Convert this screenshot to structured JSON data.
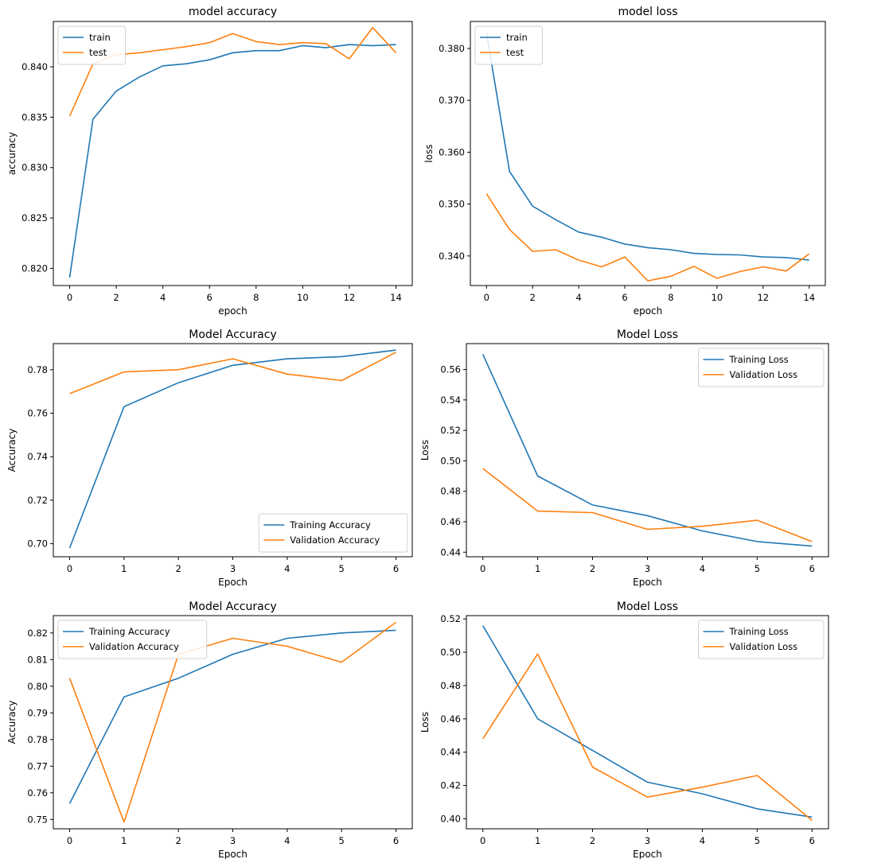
{
  "chart_data": [
    {
      "type": "line",
      "title": "model accuracy",
      "xlabel": "epoch",
      "ylabel": "accuracy",
      "xlim": [
        -0.7,
        14.7
      ],
      "ylim": [
        0.8183,
        0.8445
      ],
      "xticks": [
        0,
        2,
        4,
        6,
        8,
        10,
        12,
        14
      ],
      "yticks": [
        0.82,
        0.825,
        0.83,
        0.835,
        0.84
      ],
      "ytick_labels": [
        "0.820",
        "0.825",
        "0.830",
        "0.835",
        "0.840"
      ],
      "legend_loc": "upper-left",
      "x": [
        0,
        1,
        2,
        3,
        4,
        5,
        6,
        7,
        8,
        9,
        10,
        11,
        12,
        13,
        14
      ],
      "series": [
        {
          "name": "train",
          "color": "#1f77b4",
          "values": [
            0.8191,
            0.8348,
            0.8376,
            0.839,
            0.8401,
            0.8403,
            0.8407,
            0.8414,
            0.8416,
            0.8416,
            0.8421,
            0.8419,
            0.8422,
            0.8421,
            0.8422
          ]
        },
        {
          "name": "test",
          "color": "#ff7f0e",
          "values": [
            0.8351,
            0.8403,
            0.8412,
            0.8414,
            0.8417,
            0.842,
            0.8424,
            0.8433,
            0.8425,
            0.8422,
            0.8424,
            0.8423,
            0.8408,
            0.8439,
            0.8414
          ]
        }
      ]
    },
    {
      "type": "line",
      "title": "model loss",
      "xlabel": "epoch",
      "ylabel": "loss",
      "xlim": [
        -0.7,
        14.7
      ],
      "ylim": [
        0.3343,
        0.3852
      ],
      "xticks": [
        0,
        2,
        4,
        6,
        8,
        10,
        12,
        14
      ],
      "yticks": [
        0.34,
        0.35,
        0.36,
        0.37,
        0.38
      ],
      "ytick_labels": [
        "0.340",
        "0.350",
        "0.360",
        "0.370",
        "0.380"
      ],
      "legend_loc": "upper-left",
      "x": [
        0,
        1,
        2,
        3,
        4,
        5,
        6,
        7,
        8,
        9,
        10,
        11,
        12,
        13,
        14
      ],
      "series": [
        {
          "name": "train",
          "color": "#1f77b4",
          "values": [
            0.383,
            0.3563,
            0.3496,
            0.347,
            0.3446,
            0.3436,
            0.3423,
            0.3416,
            0.3412,
            0.3405,
            0.3403,
            0.3402,
            0.3398,
            0.3397,
            0.3392
          ]
        },
        {
          "name": "test",
          "color": "#ff7f0e",
          "values": [
            0.352,
            0.3451,
            0.3409,
            0.3412,
            0.3392,
            0.3379,
            0.3398,
            0.3352,
            0.3361,
            0.338,
            0.3357,
            0.337,
            0.3379,
            0.3371,
            0.3404
          ]
        }
      ]
    },
    {
      "type": "line",
      "title": "Model Accuracy",
      "xlabel": "Epoch",
      "ylabel": "Accuracy",
      "xlim": [
        -0.3,
        6.3
      ],
      "ylim": [
        0.694,
        0.792
      ],
      "xticks": [
        0,
        1,
        2,
        3,
        4,
        5,
        6
      ],
      "yticks": [
        0.7,
        0.72,
        0.74,
        0.76,
        0.78
      ],
      "ytick_labels": [
        "0.70",
        "0.72",
        "0.74",
        "0.76",
        "0.78"
      ],
      "legend_loc": "lower-right",
      "x": [
        0,
        1,
        2,
        3,
        4,
        5,
        6
      ],
      "series": [
        {
          "name": "Training Accuracy",
          "color": "#1f77b4",
          "values": [
            0.698,
            0.763,
            0.774,
            0.782,
            0.785,
            0.786,
            0.789
          ]
        },
        {
          "name": "Validation Accuracy",
          "color": "#ff7f0e",
          "values": [
            0.769,
            0.779,
            0.78,
            0.785,
            0.778,
            0.775,
            0.788
          ]
        }
      ]
    },
    {
      "type": "line",
      "title": "Model Loss",
      "xlabel": "Epoch",
      "ylabel": "Loss",
      "xlim": [
        -0.3,
        6.3
      ],
      "ylim": [
        0.437,
        0.577
      ],
      "xticks": [
        0,
        1,
        2,
        3,
        4,
        5,
        6
      ],
      "yticks": [
        0.44,
        0.46,
        0.48,
        0.5,
        0.52,
        0.54,
        0.56
      ],
      "ytick_labels": [
        "0.44",
        "0.46",
        "0.48",
        "0.50",
        "0.52",
        "0.54",
        "0.56"
      ],
      "legend_loc": "upper-right",
      "x": [
        0,
        1,
        2,
        3,
        4,
        5,
        6
      ],
      "series": [
        {
          "name": "Training Loss",
          "color": "#1f77b4",
          "values": [
            0.57,
            0.49,
            0.471,
            0.464,
            0.454,
            0.447,
            0.444
          ]
        },
        {
          "name": "Validation Loss",
          "color": "#ff7f0e",
          "values": [
            0.495,
            0.467,
            0.466,
            0.455,
            0.457,
            0.461,
            0.447
          ]
        }
      ]
    },
    {
      "type": "line",
      "title": "Model Accuracy",
      "xlabel": "Epoch",
      "ylabel": "Accuracy",
      "xlim": [
        -0.3,
        6.3
      ],
      "ylim": [
        0.7465,
        0.8265
      ],
      "xticks": [
        0,
        1,
        2,
        3,
        4,
        5,
        6
      ],
      "yticks": [
        0.75,
        0.76,
        0.77,
        0.78,
        0.79,
        0.8,
        0.81,
        0.82
      ],
      "ytick_labels": [
        "0.75",
        "0.76",
        "0.77",
        "0.78",
        "0.79",
        "0.80",
        "0.81",
        "0.82"
      ],
      "legend_loc": "upper-left",
      "x": [
        0,
        1,
        2,
        3,
        4,
        5,
        6
      ],
      "series": [
        {
          "name": "Training Accuracy",
          "color": "#1f77b4",
          "values": [
            0.756,
            0.796,
            0.803,
            0.812,
            0.818,
            0.82,
            0.821
          ]
        },
        {
          "name": "Validation Accuracy",
          "color": "#ff7f0e",
          "values": [
            0.803,
            0.749,
            0.812,
            0.818,
            0.815,
            0.809,
            0.824
          ]
        }
      ]
    },
    {
      "type": "line",
      "title": "Model Loss",
      "xlabel": "Epoch",
      "ylabel": "Loss",
      "xlim": [
        -0.3,
        6.3
      ],
      "ylim": [
        0.394,
        0.522
      ],
      "xticks": [
        0,
        1,
        2,
        3,
        4,
        5,
        6
      ],
      "yticks": [
        0.4,
        0.42,
        0.44,
        0.46,
        0.48,
        0.5,
        0.52
      ],
      "ytick_labels": [
        "0.40",
        "0.42",
        "0.44",
        "0.46",
        "0.48",
        "0.50",
        "0.52"
      ],
      "legend_loc": "upper-right",
      "x": [
        0,
        1,
        2,
        3,
        4,
        5,
        6
      ],
      "series": [
        {
          "name": "Training Loss",
          "color": "#1f77b4",
          "values": [
            0.516,
            0.46,
            0.441,
            0.422,
            0.415,
            0.406,
            0.401
          ]
        },
        {
          "name": "Validation Loss",
          "color": "#ff7f0e",
          "values": [
            0.448,
            0.499,
            0.431,
            0.413,
            0.419,
            0.426,
            0.399
          ]
        }
      ]
    }
  ]
}
